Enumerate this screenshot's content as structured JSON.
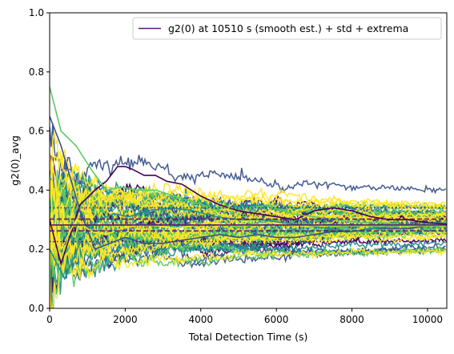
{
  "chart_data": {
    "type": "line",
    "title": "",
    "xlabel": "Total Detection Time (s)",
    "ylabel": "g2(0)_avg",
    "xlim": [
      0,
      10510
    ],
    "ylim": [
      0.0,
      1.0
    ],
    "x_ticks": [
      0,
      2000,
      4000,
      6000,
      8000,
      10000
    ],
    "y_ticks": [
      0.0,
      0.2,
      0.4,
      0.6,
      0.8,
      1.0
    ],
    "x_tick_labels": [
      "0",
      "2000",
      "4000",
      "6000",
      "8000",
      "10000"
    ],
    "y_tick_labels": [
      "0.0",
      "0.2",
      "0.4",
      "0.6",
      "0.8",
      "1.0"
    ],
    "grid": false,
    "legend": {
      "position": "top-right",
      "entries": [
        {
          "label": "g2(0) at 10510 s (smooth est.) + std + extrema",
          "color": "#5c1a6e",
          "style": "solid"
        }
      ]
    },
    "converged_value": 0.282,
    "reference_lines": [
      {
        "name": "estimate",
        "y": 0.282,
        "style": "solid",
        "color": "#5c1a6e"
      },
      {
        "name": "upper std",
        "y": 0.302,
        "style": "dashed",
        "color": "#5c1a6e"
      },
      {
        "name": "lower std",
        "y": 0.262,
        "style": "dashed",
        "color": "#5c1a6e"
      },
      {
        "name": "upper extrema",
        "y": 0.34,
        "style": "dotted",
        "color": "#5c1a6e"
      },
      {
        "name": "lower extrema",
        "y": 0.226,
        "style": "dotted",
        "color": "#5c1a6e"
      }
    ],
    "palette": [
      "#440154",
      "#3b528b",
      "#21918c",
      "#5ec962",
      "#fde725"
    ],
    "series_count": 60,
    "series": [
      {
        "color": "#440154",
        "x": [
          0,
          300,
          800,
          1200,
          1500,
          1800,
          2000,
          2200,
          2500,
          2800,
          3100,
          3500,
          4000,
          4500,
          5000,
          5500,
          6000,
          6500,
          7000,
          7500,
          8000,
          8500,
          9000,
          9500,
          10000,
          10510
        ],
        "y": [
          0.3,
          0.15,
          0.35,
          0.4,
          0.43,
          0.48,
          0.48,
          0.47,
          0.45,
          0.45,
          0.43,
          0.42,
          0.38,
          0.35,
          0.33,
          0.32,
          0.31,
          0.3,
          0.33,
          0.34,
          0.33,
          0.31,
          0.3,
          0.3,
          0.29,
          0.285
        ]
      },
      {
        "color": "#3b528b",
        "x": [
          0,
          300,
          800,
          1200,
          1600,
          2000,
          2500,
          3000,
          3500,
          4000,
          4500,
          5000,
          5500,
          6000,
          6500,
          7000,
          7500,
          8000,
          8500,
          9000,
          9500,
          10000,
          10510
        ],
        "y": [
          0.65,
          0.55,
          0.33,
          0.2,
          0.22,
          0.24,
          0.22,
          0.22,
          0.23,
          0.24,
          0.25,
          0.24,
          0.25,
          0.24,
          0.24,
          0.25,
          0.26,
          0.26,
          0.27,
          0.27,
          0.27,
          0.28,
          0.28
        ]
      },
      {
        "color": "#21918c",
        "x": [
          0,
          400,
          900,
          1300,
          1700,
          2100,
          2600,
          3200,
          3800,
          4400,
          5000,
          5600,
          6200,
          6800,
          7400,
          8000,
          8600,
          9200,
          9800,
          10510
        ],
        "y": [
          0.2,
          0.1,
          0.25,
          0.3,
          0.32,
          0.31,
          0.33,
          0.34,
          0.33,
          0.31,
          0.3,
          0.3,
          0.29,
          0.28,
          0.27,
          0.26,
          0.27,
          0.28,
          0.28,
          0.28
        ]
      },
      {
        "color": "#5ec962",
        "x": [
          0,
          300,
          700,
          1100,
          1500,
          1900,
          2300,
          2800,
          3300,
          3800,
          4300,
          4800,
          5300,
          5800,
          6400,
          7000,
          7600,
          8200,
          8800,
          9400,
          10000,
          10510
        ],
        "y": [
          0.75,
          0.6,
          0.55,
          0.47,
          0.4,
          0.41,
          0.4,
          0.4,
          0.38,
          0.36,
          0.34,
          0.34,
          0.34,
          0.35,
          0.32,
          0.31,
          0.3,
          0.29,
          0.29,
          0.28,
          0.28,
          0.28
        ]
      },
      {
        "color": "#fde725",
        "x": [
          0,
          300,
          700,
          1100,
          1500,
          1900,
          2300,
          2800,
          3300,
          3800,
          4300,
          4800,
          5300,
          5800,
          6400,
          7000,
          7600,
          8200,
          8800,
          9400,
          10000,
          10510
        ],
        "y": [
          0.5,
          0.2,
          0.3,
          0.26,
          0.25,
          0.27,
          0.28,
          0.28,
          0.27,
          0.28,
          0.29,
          0.28,
          0.28,
          0.29,
          0.28,
          0.28,
          0.28,
          0.28,
          0.28,
          0.28,
          0.28,
          0.28
        ]
      }
    ]
  }
}
